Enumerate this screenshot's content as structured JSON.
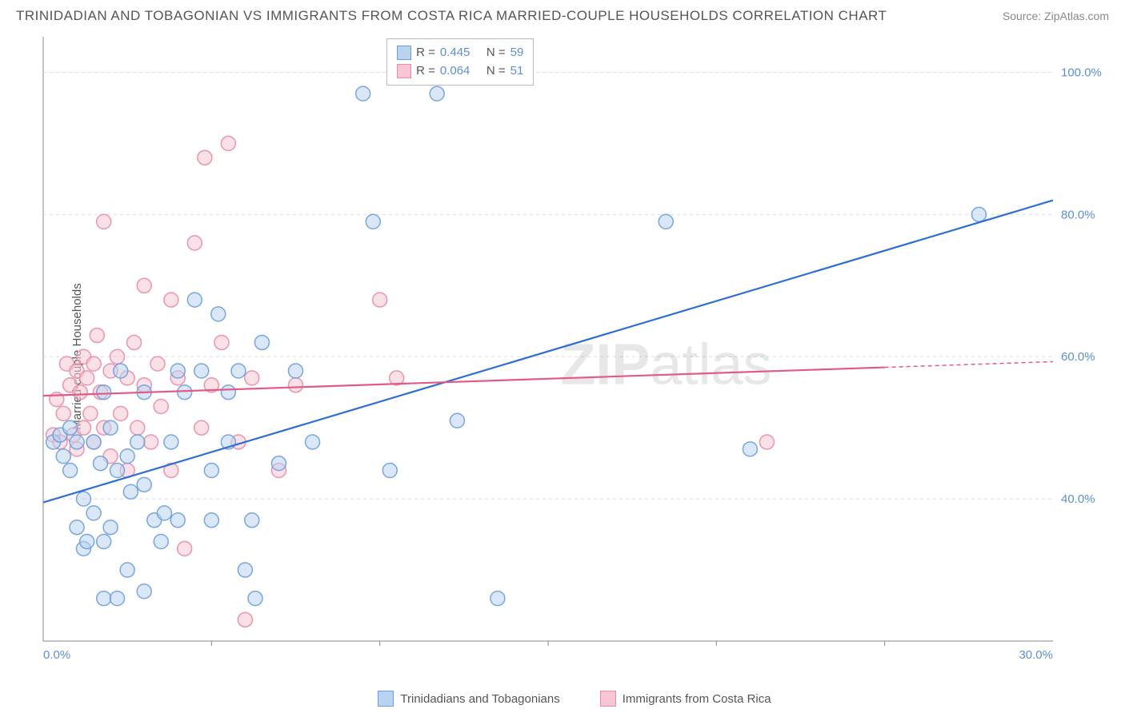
{
  "header": {
    "title": "TRINIDADIAN AND TOBAGONIAN VS IMMIGRANTS FROM COSTA RICA MARRIED-COUPLE HOUSEHOLDS CORRELATION CHART",
    "source": "Source: ZipAtlas.com"
  },
  "ylabel": "Married-couple Households",
  "watermark": {
    "prefix": "ZIP",
    "suffix": "atlas"
  },
  "chart": {
    "type": "scatter",
    "background_color": "#ffffff",
    "grid_color": "#dddddd",
    "axis_color": "#888888",
    "xlim": [
      0,
      30
    ],
    "ylim": [
      20,
      105
    ],
    "xticks": [
      {
        "v": 0,
        "label": "0.0%"
      },
      {
        "v": 30,
        "label": "30.0%"
      }
    ],
    "xminor": [
      5,
      10,
      15,
      20,
      25
    ],
    "yticks": [
      {
        "v": 40,
        "label": "40.0%"
      },
      {
        "v": 60,
        "label": "60.0%"
      },
      {
        "v": 80,
        "label": "80.0%"
      },
      {
        "v": 100,
        "label": "100.0%"
      }
    ],
    "tick_color": "#5b8fd6",
    "marker_radius": 9,
    "marker_stroke_width": 1.5,
    "marker_opacity": 0.55,
    "line_width": 2.2,
    "series": [
      {
        "name": "Trinidadians and Tobagonians",
        "color_fill": "#b9d3f0",
        "color_stroke": "#6a9edc",
        "line_color": "#2e6fd6",
        "R": "0.445",
        "N": "59",
        "trend": {
          "x1": 0,
          "y1": 39.5,
          "x2": 30,
          "y2": 82
        },
        "points": [
          [
            0.3,
            48
          ],
          [
            0.5,
            49
          ],
          [
            0.6,
            46
          ],
          [
            0.8,
            50
          ],
          [
            0.8,
            44
          ],
          [
            1.0,
            48
          ],
          [
            1.0,
            36
          ],
          [
            1.2,
            40
          ],
          [
            1.2,
            33
          ],
          [
            1.3,
            34
          ],
          [
            1.5,
            48
          ],
          [
            1.5,
            38
          ],
          [
            1.7,
            45
          ],
          [
            1.8,
            55
          ],
          [
            1.8,
            26
          ],
          [
            1.8,
            34
          ],
          [
            2.0,
            50
          ],
          [
            2.0,
            36
          ],
          [
            2.2,
            44
          ],
          [
            2.2,
            26
          ],
          [
            2.3,
            58
          ],
          [
            2.5,
            46
          ],
          [
            2.5,
            30
          ],
          [
            2.6,
            41
          ],
          [
            2.8,
            48
          ],
          [
            3.0,
            55
          ],
          [
            3.0,
            42
          ],
          [
            3.0,
            27
          ],
          [
            3.3,
            37
          ],
          [
            3.5,
            34
          ],
          [
            3.6,
            38
          ],
          [
            3.8,
            48
          ],
          [
            4.0,
            58
          ],
          [
            4.0,
            37
          ],
          [
            4.2,
            55
          ],
          [
            4.5,
            68
          ],
          [
            4.7,
            58
          ],
          [
            5.0,
            44
          ],
          [
            5.0,
            37
          ],
          [
            5.2,
            66
          ],
          [
            5.5,
            55
          ],
          [
            5.5,
            48
          ],
          [
            5.8,
            58
          ],
          [
            6.0,
            30
          ],
          [
            6.2,
            37
          ],
          [
            6.3,
            26
          ],
          [
            6.5,
            62
          ],
          [
            7.0,
            45
          ],
          [
            7.5,
            58
          ],
          [
            8.0,
            48
          ],
          [
            9.5,
            97
          ],
          [
            9.8,
            79
          ],
          [
            10.3,
            44
          ],
          [
            11.7,
            97
          ],
          [
            12.3,
            51
          ],
          [
            13.5,
            26
          ],
          [
            18.5,
            79
          ],
          [
            21.0,
            47
          ],
          [
            27.8,
            80
          ]
        ]
      },
      {
        "name": "Immigrants from Costa Rica",
        "color_fill": "#f6c6d4",
        "color_stroke": "#e98ba6",
        "line_color": "#e25a85",
        "R": "0.064",
        "N": "51",
        "trend": {
          "x1": 0,
          "y1": 54.5,
          "x2": 25,
          "y2": 58.5
        },
        "trend_extend": {
          "x1": 25,
          "y1": 58.5,
          "x2": 30,
          "y2": 59.3
        },
        "points": [
          [
            0.3,
            49
          ],
          [
            0.4,
            54
          ],
          [
            0.5,
            48
          ],
          [
            0.6,
            52
          ],
          [
            0.7,
            59
          ],
          [
            0.8,
            56
          ],
          [
            0.9,
            49
          ],
          [
            1.0,
            58
          ],
          [
            1.0,
            47
          ],
          [
            1.1,
            55
          ],
          [
            1.2,
            60
          ],
          [
            1.2,
            50
          ],
          [
            1.3,
            57
          ],
          [
            1.4,
            52
          ],
          [
            1.5,
            59
          ],
          [
            1.5,
            48
          ],
          [
            1.6,
            63
          ],
          [
            1.7,
            55
          ],
          [
            1.8,
            50
          ],
          [
            1.8,
            79
          ],
          [
            2.0,
            58
          ],
          [
            2.0,
            46
          ],
          [
            2.2,
            60
          ],
          [
            2.3,
            52
          ],
          [
            2.5,
            57
          ],
          [
            2.5,
            44
          ],
          [
            2.7,
            62
          ],
          [
            2.8,
            50
          ],
          [
            3.0,
            56
          ],
          [
            3.0,
            70
          ],
          [
            3.2,
            48
          ],
          [
            3.4,
            59
          ],
          [
            3.5,
            53
          ],
          [
            3.8,
            68
          ],
          [
            3.8,
            44
          ],
          [
            4.0,
            57
          ],
          [
            4.2,
            33
          ],
          [
            4.5,
            76
          ],
          [
            4.7,
            50
          ],
          [
            4.8,
            88
          ],
          [
            5.0,
            56
          ],
          [
            5.3,
            62
          ],
          [
            5.5,
            90
          ],
          [
            5.8,
            48
          ],
          [
            6.0,
            23
          ],
          [
            6.2,
            57
          ],
          [
            7.0,
            44
          ],
          [
            7.5,
            56
          ],
          [
            10.0,
            68
          ],
          [
            10.5,
            57
          ],
          [
            21.5,
            48
          ]
        ]
      }
    ]
  },
  "bottom_legend": [
    {
      "label": "Trinidadians and Tobagonians",
      "fill": "#b9d3f0",
      "stroke": "#6a9edc"
    },
    {
      "label": "Immigrants from Costa Rica",
      "fill": "#f6c6d4",
      "stroke": "#e98ba6"
    }
  ],
  "top_legend": {
    "r_label": "R",
    "n_label": "N",
    "eq": "="
  }
}
